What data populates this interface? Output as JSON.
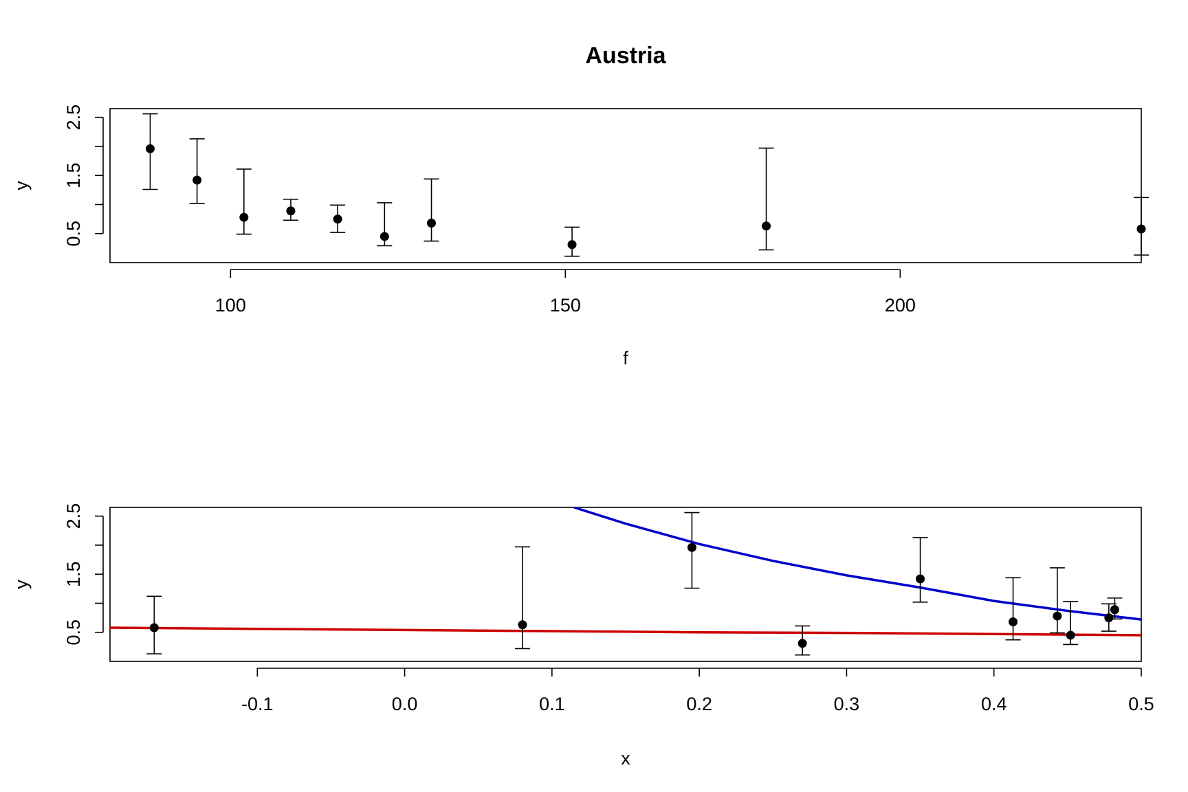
{
  "chart_data": [
    {
      "type": "scatter",
      "title": "Austria",
      "xlabel": "f",
      "ylabel": "y",
      "xlim": [
        82,
        236
      ],
      "ylim": [
        0,
        2.65
      ],
      "x_ticks": [
        100,
        150,
        200
      ],
      "x_tick_labels": [
        "100",
        "150",
        "200"
      ],
      "y_ticks": [
        0.5,
        1,
        1.5,
        2,
        2.5
      ],
      "y_tick_labels": [
        "0.5",
        "",
        "1.5",
        "",
        "2.5"
      ],
      "grid": false,
      "points": [
        {
          "x": 88,
          "y": 1.96,
          "lo": 1.26,
          "hi": 2.56
        },
        {
          "x": 95,
          "y": 1.42,
          "lo": 1.02,
          "hi": 2.13
        },
        {
          "x": 102,
          "y": 0.78,
          "lo": 0.49,
          "hi": 1.61
        },
        {
          "x": 109,
          "y": 0.89,
          "lo": 0.73,
          "hi": 1.09
        },
        {
          "x": 116,
          "y": 0.75,
          "lo": 0.52,
          "hi": 0.99
        },
        {
          "x": 123,
          "y": 0.45,
          "lo": 0.29,
          "hi": 1.03
        },
        {
          "x": 130,
          "y": 0.68,
          "lo": 0.37,
          "hi": 1.44
        },
        {
          "x": 151,
          "y": 0.31,
          "lo": 0.11,
          "hi": 0.61
        },
        {
          "x": 180,
          "y": 0.63,
          "lo": 0.22,
          "hi": 1.97
        },
        {
          "x": 236,
          "y": 0.58,
          "lo": 0.13,
          "hi": 1.12
        }
      ]
    },
    {
      "type": "scatter",
      "title": "",
      "xlabel": "x",
      "ylabel": "y",
      "xlim": [
        -0.2,
        0.5
      ],
      "ylim": [
        0,
        2.65
      ],
      "x_ticks": [
        -0.1,
        0.0,
        0.1,
        0.2,
        0.3,
        0.4,
        0.5
      ],
      "x_tick_labels": [
        "-0.1",
        "0.0",
        "0.1",
        "0.2",
        "0.3",
        "0.4",
        "0.5"
      ],
      "y_ticks": [
        0.5,
        1,
        1.5,
        2,
        2.5
      ],
      "y_tick_labels": [
        "0.5",
        "",
        "1.5",
        "",
        "2.5"
      ],
      "grid": false,
      "points": [
        {
          "x": -0.17,
          "y": 0.58,
          "lo": 0.13,
          "hi": 1.12
        },
        {
          "x": 0.08,
          "y": 0.63,
          "lo": 0.22,
          "hi": 1.97
        },
        {
          "x": 0.195,
          "y": 1.96,
          "lo": 1.26,
          "hi": 2.56
        },
        {
          "x": 0.27,
          "y": 0.31,
          "lo": 0.11,
          "hi": 0.61
        },
        {
          "x": 0.35,
          "y": 1.42,
          "lo": 1.02,
          "hi": 2.13
        },
        {
          "x": 0.413,
          "y": 0.68,
          "lo": 0.37,
          "hi": 1.44
        },
        {
          "x": 0.443,
          "y": 0.78,
          "lo": 0.49,
          "hi": 1.61
        },
        {
          "x": 0.452,
          "y": 0.45,
          "lo": 0.29,
          "hi": 1.03
        },
        {
          "x": 0.478,
          "y": 0.75,
          "lo": 0.52,
          "hi": 0.99
        },
        {
          "x": 0.482,
          "y": 0.89,
          "lo": 0.73,
          "hi": 1.09
        }
      ],
      "lines": [
        {
          "color": "#0000cc",
          "x": [
            0.115,
            0.15,
            0.2,
            0.25,
            0.3,
            0.35,
            0.4,
            0.45,
            0.5
          ],
          "y": [
            2.65,
            2.37,
            2.02,
            1.73,
            1.48,
            1.27,
            1.04,
            0.87,
            0.72
          ]
        },
        {
          "color": "#cc0000",
          "x": [
            -0.2,
            -0.1,
            0.0,
            0.1,
            0.2,
            0.3,
            0.4,
            0.5
          ],
          "y": [
            0.58,
            0.56,
            0.54,
            0.52,
            0.5,
            0.49,
            0.47,
            0.45
          ]
        }
      ]
    }
  ]
}
